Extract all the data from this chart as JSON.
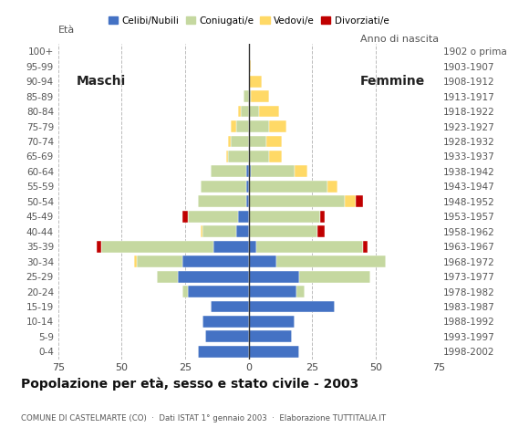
{
  "age_groups": [
    "0-4",
    "5-9",
    "10-14",
    "15-19",
    "20-24",
    "25-29",
    "30-34",
    "35-39",
    "40-44",
    "45-49",
    "50-54",
    "55-59",
    "60-64",
    "65-69",
    "70-74",
    "75-79",
    "80-84",
    "85-89",
    "90-94",
    "95-99",
    "100+"
  ],
  "birth_years": [
    "1998-2002",
    "1993-1997",
    "1988-1992",
    "1983-1987",
    "1978-1982",
    "1973-1977",
    "1968-1972",
    "1963-1967",
    "1958-1962",
    "1953-1957",
    "1948-1952",
    "1943-1947",
    "1938-1942",
    "1933-1937",
    "1928-1932",
    "1923-1927",
    "1918-1922",
    "1913-1917",
    "1908-1912",
    "1903-1907",
    "1902 o prima"
  ],
  "males": {
    "celibe": [
      20,
      17,
      18,
      15,
      24,
      28,
      26,
      14,
      5,
      4,
      1,
      1,
      1,
      0,
      0,
      0,
      0,
      0,
      0,
      0,
      0
    ],
    "coniugato": [
      0,
      0,
      0,
      0,
      2,
      8,
      18,
      44,
      13,
      20,
      19,
      18,
      14,
      8,
      7,
      5,
      3,
      2,
      0,
      0,
      0
    ],
    "vedovo": [
      0,
      0,
      0,
      0,
      0,
      0,
      1,
      0,
      1,
      0,
      0,
      0,
      0,
      1,
      1,
      2,
      1,
      0,
      0,
      0,
      0
    ],
    "divorziato": [
      0,
      0,
      0,
      0,
      0,
      0,
      0,
      2,
      0,
      2,
      0,
      0,
      0,
      0,
      0,
      0,
      0,
      0,
      0,
      0,
      0
    ]
  },
  "females": {
    "celibe": [
      20,
      17,
      18,
      34,
      19,
      20,
      11,
      3,
      0,
      0,
      0,
      0,
      1,
      0,
      0,
      0,
      0,
      0,
      0,
      0,
      0
    ],
    "coniugato": [
      0,
      0,
      0,
      0,
      3,
      28,
      43,
      42,
      27,
      28,
      38,
      31,
      17,
      8,
      7,
      8,
      4,
      1,
      0,
      0,
      0
    ],
    "vedovo": [
      0,
      0,
      0,
      0,
      0,
      0,
      0,
      0,
      0,
      0,
      4,
      4,
      5,
      5,
      6,
      7,
      8,
      7,
      5,
      1,
      0
    ],
    "divorziato": [
      0,
      0,
      0,
      0,
      0,
      0,
      0,
      2,
      3,
      2,
      3,
      0,
      0,
      0,
      0,
      0,
      0,
      0,
      0,
      0,
      0
    ]
  },
  "colors": {
    "celibe": "#4472c4",
    "coniugato": "#c5d8a0",
    "vedovo": "#ffd966",
    "divorziato": "#c00000"
  },
  "xlim": 75,
  "title": "Popolazione per età, sesso e stato civile - 2003",
  "subtitle": "COMUNE DI CASTELMARTE (CO)  ·  Dati ISTAT 1° gennaio 2003  ·  Elaborazione TUTTITALIA.IT",
  "ylabel_left": "Età",
  "ylabel_right": "Anno di nascita",
  "label_maschi": "Maschi",
  "label_femmine": "Femmine",
  "legend_labels": [
    "Celibi/Nubili",
    "Coniugati/e",
    "Vedovi/e",
    "Divorziati/e"
  ],
  "bg_color": "#ffffff",
  "grid_color": "#bbbbbb"
}
